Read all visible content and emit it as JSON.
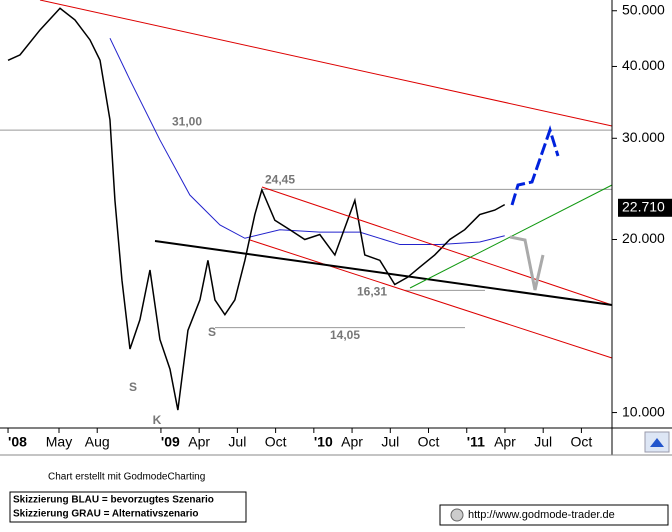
{
  "chart_data": {
    "type": "line",
    "x": [
      0,
      0.94,
      2.51,
      4.08,
      5.25,
      6.43,
      7.22,
      8.0,
      8.39,
      8.94,
      9.57,
      10.35,
      11.14,
      11.92,
      12.71,
      13.33,
      14.12,
      15.06,
      15.69,
      16.24,
      17.02,
      17.8,
      18.59,
      19.37,
      19.92,
      20.94,
      22.12,
      23.29,
      24.47,
      25.65,
      27.22,
      28.0,
      29.18,
      30.35,
      31.37,
      32.31,
      33.49,
      34.67,
      35.84,
      37.02,
      38.2,
      38.98
    ],
    "series": [
      {
        "color": "#000000",
        "values": [
          41.0,
          41.9,
          46.3,
          50.5,
          48.2,
          44.5,
          41.0,
          32.3,
          23.4,
          17.0,
          12.9,
          14.5,
          17.7,
          13.4,
          11.9,
          10.1,
          13.9,
          15.7,
          18.4,
          15.7,
          14.8,
          15.7,
          18.4,
          22.1,
          24.4,
          21.6,
          20.8,
          20.0,
          20.4,
          18.8,
          23.4,
          18.8,
          18.4,
          16.7,
          17.2,
          17.9,
          18.8,
          20.0,
          20.8,
          22.1,
          22.5,
          23.0
        ]
      }
    ],
    "ma": {
      "color": "#2222cc",
      "x": [
        8.0,
        9.57,
        11.92,
        14.27,
        16.63,
        18.59,
        21.33,
        24.47,
        27.61,
        30.75,
        33.88,
        37.02,
        38.98
      ],
      "values": [
        44.8,
        37.9,
        29.8,
        23.9,
        21.2,
        20.1,
        20.8,
        20.6,
        20.6,
        19.6,
        19.6,
        19.8,
        20.3
      ]
    },
    "levels": [
      {
        "value": 31,
        "label": "31,00"
      },
      {
        "value": 24.45,
        "label": "24,45"
      },
      {
        "value": 16.31,
        "label": "16,31"
      },
      {
        "value": 14.05,
        "label": "14,05"
      }
    ],
    "markers": [
      "S",
      "S",
      "K"
    ],
    "last_price": {
      "value": 22.71,
      "label": "22.710"
    },
    "log_scale": true,
    "ylim": [
      9.4,
      52.2
    ],
    "yticks": [
      {
        "value": 50,
        "label": "50.000"
      },
      {
        "value": 40,
        "label": "40.000"
      },
      {
        "value": 30,
        "label": "30.000"
      },
      {
        "value": 20,
        "label": "20.000"
      },
      {
        "value": 10,
        "label": "10.000"
      }
    ],
    "xlim": [
      -0.63,
      47.4
    ],
    "xticks": [
      {
        "value": 0,
        "label": "'08"
      },
      {
        "value": 4,
        "label": "May"
      },
      {
        "value": 7,
        "label": "Aug"
      },
      {
        "value": 12,
        "label": "'09"
      },
      {
        "value": 15,
        "label": "Apr"
      },
      {
        "value": 18,
        "label": "Jul"
      },
      {
        "value": 21,
        "label": "Oct"
      },
      {
        "value": 24,
        "label": "'10"
      },
      {
        "value": 27,
        "label": "Apr"
      },
      {
        "value": 30,
        "label": "Jul"
      },
      {
        "value": 33,
        "label": "Oct"
      },
      {
        "value": 36,
        "label": "'11"
      },
      {
        "value": 39,
        "label": "Apr"
      },
      {
        "value": 42,
        "label": "Jul"
      },
      {
        "value": 45,
        "label": "Oct"
      }
    ],
    "credit": "Chart erstellt mit GodmodeCharting",
    "legend": [
      "Skizzierung BLAU = bevorzugtes Szenario",
      "Skizzierung GRAU = Alternativszenario"
    ],
    "url": "http://www.godmode-trader.de"
  }
}
